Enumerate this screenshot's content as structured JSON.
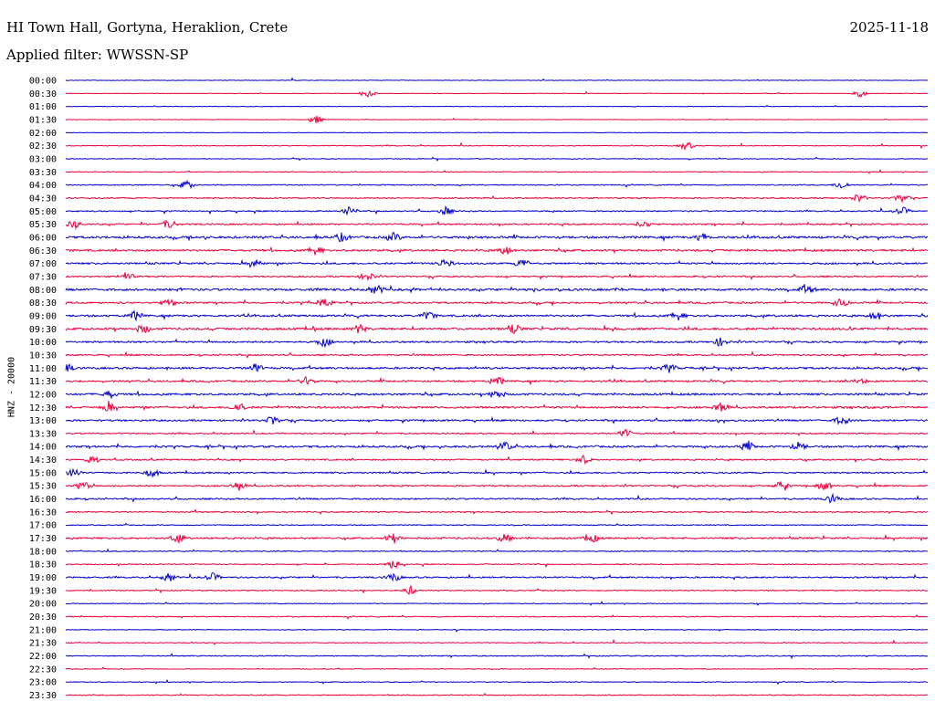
{
  "header": {
    "station": "HI Town Hall, Gortyna, Heraklion, Crete",
    "date": "2025-11-18",
    "filter": "Applied filter: WWSSN-SP"
  },
  "chart_data": {
    "type": "line",
    "title": "HI Town Hall, Gortyna, Heraklion, Crete",
    "ylabel": "HNZ - 20000",
    "row_labels": [
      "00:00",
      "00:30",
      "01:00",
      "01:30",
      "02:00",
      "02:30",
      "03:00",
      "03:30",
      "04:00",
      "04:30",
      "05:00",
      "05:30",
      "06:00",
      "06:30",
      "07:00",
      "07:30",
      "08:00",
      "08:30",
      "09:00",
      "09:30",
      "10:00",
      "10:30",
      "11:00",
      "11:30",
      "12:00",
      "12:30",
      "13:00",
      "13:30",
      "14:00",
      "14:30",
      "15:00",
      "15:30",
      "16:00",
      "16:30",
      "17:00",
      "17:30",
      "18:00",
      "18:30",
      "19:00",
      "19:30",
      "20:00",
      "20:30",
      "21:00",
      "21:30",
      "22:00",
      "22:30",
      "23:00",
      "23:30"
    ],
    "colors": [
      "#0000cc",
      "#e8003c"
    ],
    "activity": [
      1,
      1,
      1,
      1,
      1,
      2,
      2,
      2,
      3,
      4,
      4,
      5,
      8,
      7,
      6,
      5,
      8,
      6,
      7,
      8,
      6,
      5,
      7,
      6,
      7,
      7,
      6,
      4,
      7,
      5,
      5,
      5,
      5,
      4,
      3,
      6,
      3,
      3,
      5,
      3,
      2,
      3,
      2,
      2,
      3,
      2,
      2,
      3
    ],
    "events": {
      "00:30": [
        0.35,
        0.92
      ],
      "01:30": [
        0.29
      ],
      "02:30": [
        0.72
      ],
      "04:00": [
        0.14,
        0.9
      ],
      "04:30": [
        0.92,
        0.97
      ],
      "05:00": [
        0.33,
        0.44,
        0.97
      ],
      "05:30": [
        0.01,
        0.12,
        0.67
      ],
      "06:00": [
        0.32,
        0.38,
        0.74
      ],
      "06:30": [
        0.29,
        0.51
      ],
      "07:00": [
        0.22,
        0.44,
        0.53
      ],
      "07:30": [
        0.07,
        0.35
      ],
      "08:00": [
        0.36,
        0.86
      ],
      "08:30": [
        0.12,
        0.3,
        0.9
      ],
      "09:00": [
        0.08,
        0.42,
        0.71,
        0.94
      ],
      "09:30": [
        0.09,
        0.34,
        0.52
      ],
      "10:00": [
        0.3,
        0.76
      ],
      "11:00": [
        0.0,
        0.22,
        0.7
      ],
      "11:30": [
        0.28,
        0.5,
        0.92
      ],
      "12:00": [
        0.05,
        0.5
      ],
      "12:30": [
        0.05,
        0.2,
        0.76
      ],
      "13:00": [
        0.24,
        0.9
      ],
      "13:30": [
        0.65
      ],
      "14:00": [
        0.51,
        0.79,
        0.85
      ],
      "14:30": [
        0.03,
        0.6
      ],
      "15:00": [
        0.01,
        0.1
      ],
      "15:30": [
        0.02,
        0.2,
        0.83,
        0.88
      ],
      "16:00": [
        0.89
      ],
      "17:30": [
        0.13,
        0.38,
        0.51,
        0.61
      ],
      "18:30": [
        0.38
      ],
      "19:00": [
        0.12,
        0.17,
        0.38
      ],
      "19:30": [
        0.4
      ]
    }
  }
}
